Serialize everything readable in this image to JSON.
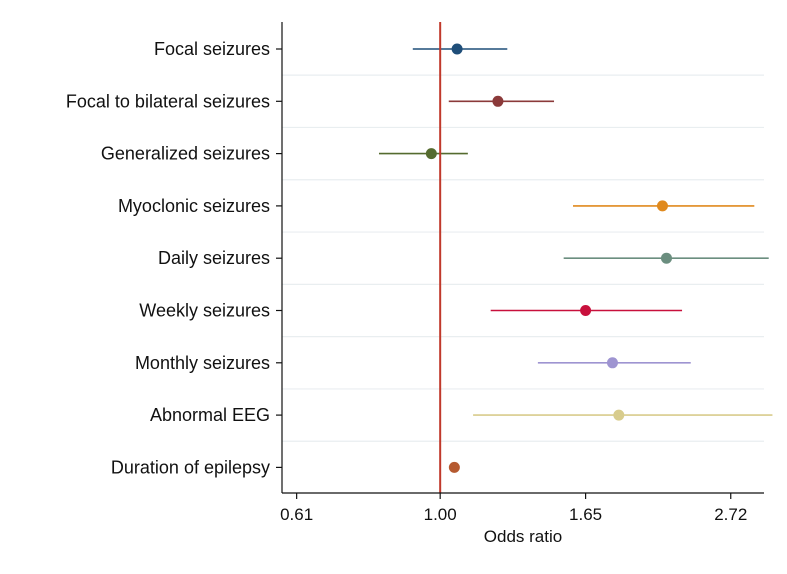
{
  "chart_data": {
    "type": "scatter",
    "subtype": "forest-plot",
    "title": "",
    "xlabel": "Odds ratio",
    "ylabel": "",
    "x_scale": "log",
    "xlim": [
      0.58,
      3.05
    ],
    "x_ticks": [
      {
        "value": 0.61,
        "label": "0.61"
      },
      {
        "value": 1.0,
        "label": "1.00"
      },
      {
        "value": 1.65,
        "label": "1.65"
      },
      {
        "value": 2.72,
        "label": "2.72"
      }
    ],
    "reference_line": {
      "value": 1.0,
      "color": "#c0392b"
    },
    "grid": true,
    "rows": [
      {
        "label": "Focal seizures",
        "or": 1.06,
        "lower": 0.91,
        "upper": 1.26,
        "color": "#1f4e79"
      },
      {
        "label": "Focal to bilateral seizures",
        "or": 1.22,
        "lower": 1.03,
        "upper": 1.48,
        "color": "#8b3a3a"
      },
      {
        "label": "Generalized seizures",
        "or": 0.97,
        "lower": 0.81,
        "upper": 1.1,
        "color": "#556b2f"
      },
      {
        "label": "Myoclonic seizures",
        "or": 2.15,
        "lower": 1.58,
        "upper": 2.95,
        "color": "#e08a1e"
      },
      {
        "label": "Daily seizures",
        "or": 2.18,
        "lower": 1.53,
        "upper": 3.1,
        "color": "#6b8e7f"
      },
      {
        "label": "Weekly seizures",
        "or": 1.65,
        "lower": 1.19,
        "upper": 2.3,
        "color": "#c8103c"
      },
      {
        "label": "Monthly seizures",
        "or": 1.81,
        "lower": 1.4,
        "upper": 2.37,
        "color": "#9e94d1"
      },
      {
        "label": "Abnormal EEG",
        "or": 1.85,
        "lower": 1.12,
        "upper": 3.14,
        "color": "#d8cc8c"
      },
      {
        "label": "Duration of epilepsy",
        "or": 1.05,
        "lower": 1.04,
        "upper": 1.06,
        "color": "#b55a30"
      }
    ]
  }
}
